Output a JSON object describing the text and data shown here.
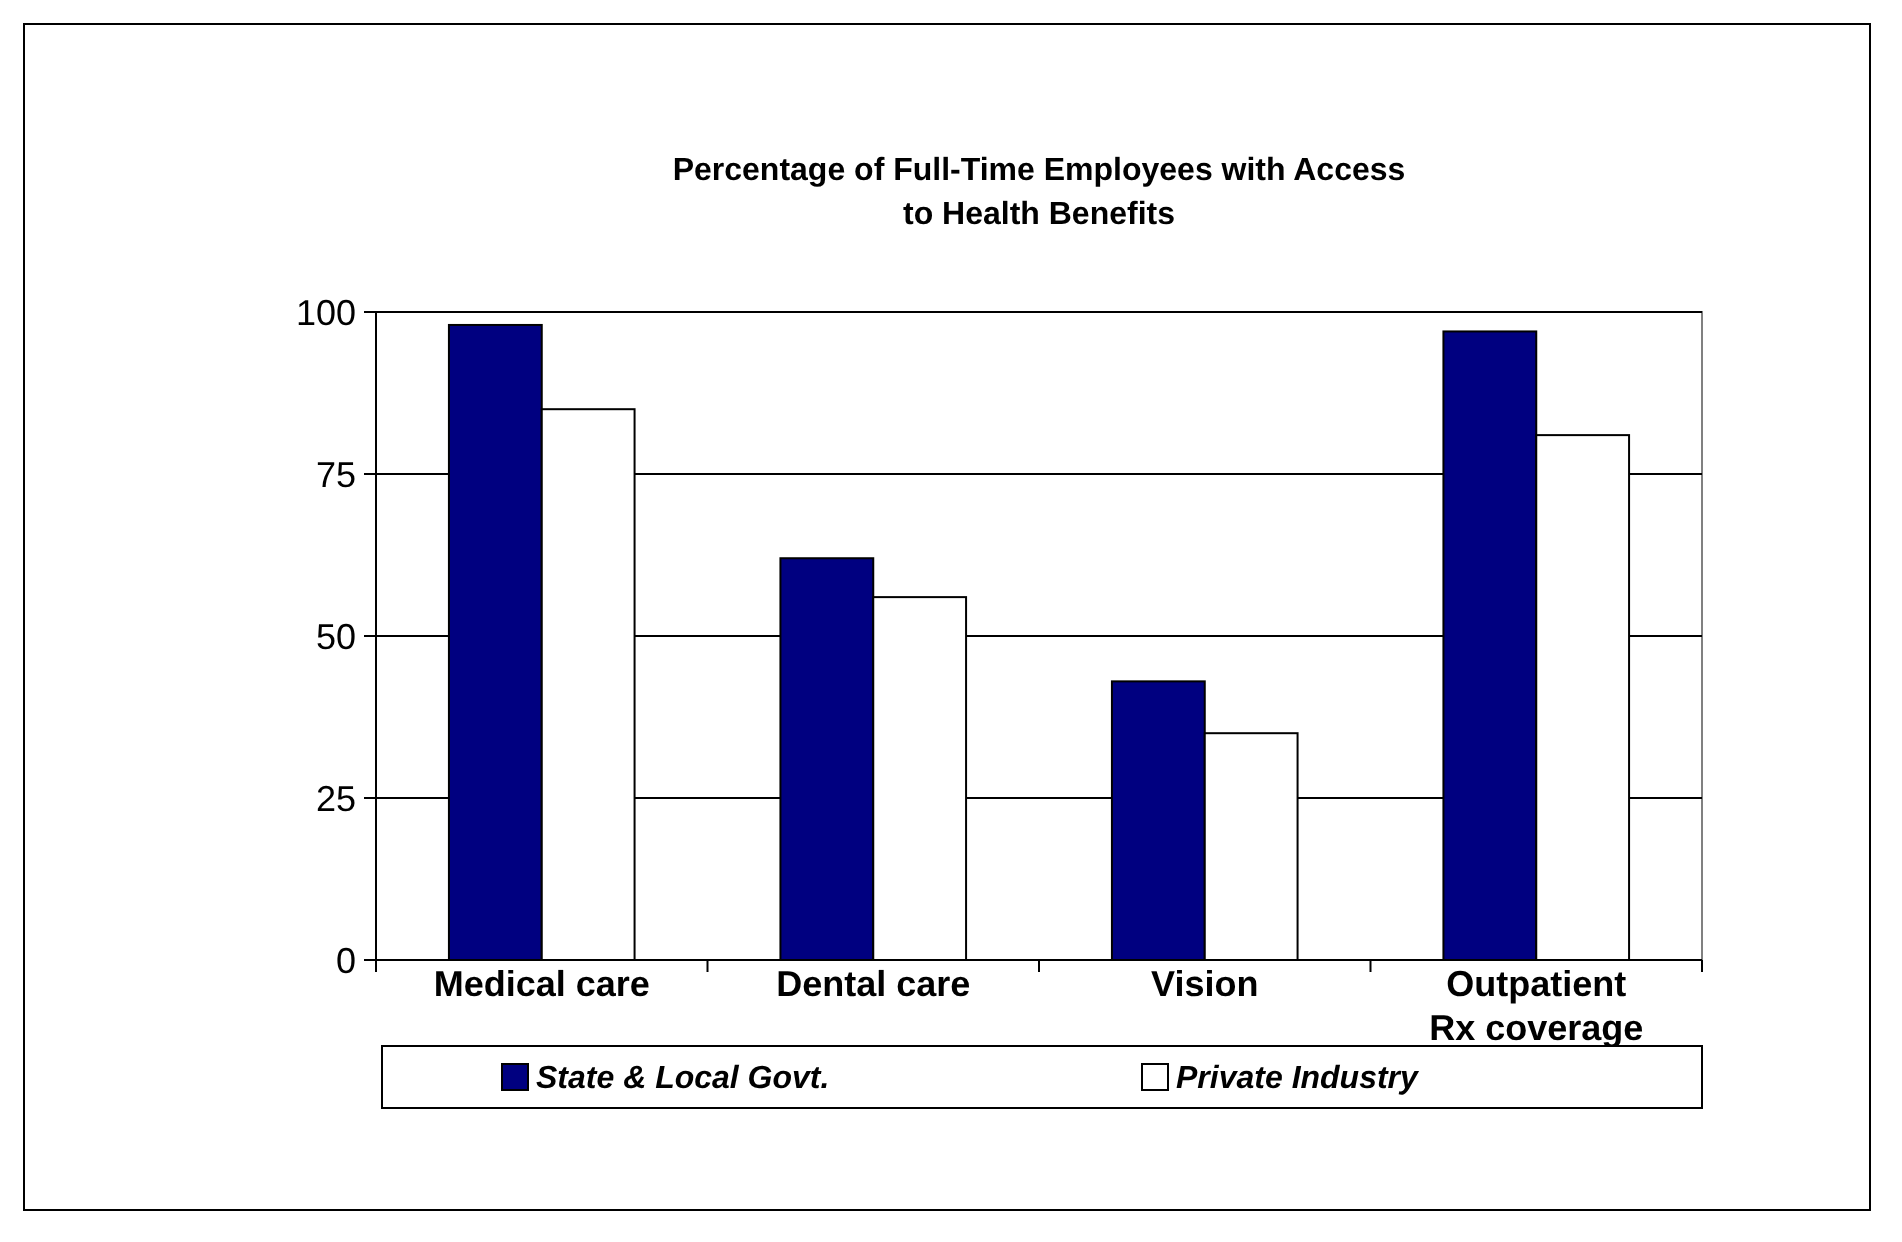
{
  "chart_data": {
    "type": "bar",
    "title": "Percentage of Full-Time Employees with Access to Health Benefits",
    "categories": [
      "Medical care",
      "Dental care",
      "Vision",
      "Outpatient Rx coverage"
    ],
    "series": [
      {
        "name": "State & Local Govt.",
        "color": "#000080",
        "values": [
          98,
          62,
          43,
          97
        ]
      },
      {
        "name": "Private Industry",
        "color": "#ffffff",
        "values": [
          85,
          56,
          35,
          81
        ]
      }
    ],
    "ylim": [
      0,
      100
    ],
    "yticks": [
      0,
      25,
      50,
      75,
      100
    ],
    "grid": "y",
    "legend": "bottom"
  }
}
